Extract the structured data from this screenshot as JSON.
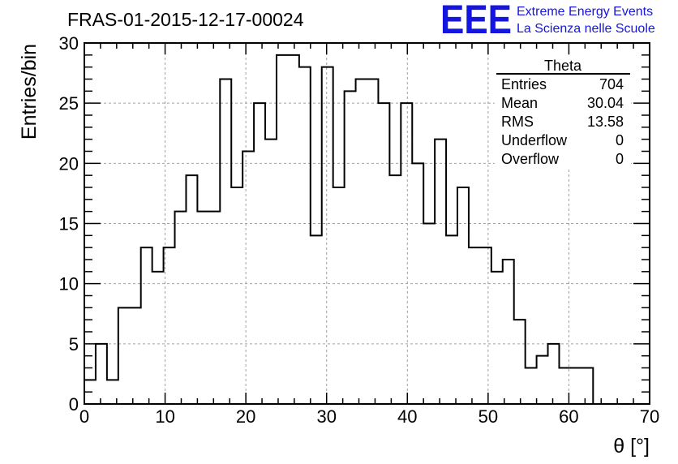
{
  "title": "FRAS-01-2015-12-17-00024",
  "logo": {
    "mark": "EEE",
    "line1": "Extreme Energy Events",
    "line2": "La Scienza nelle Scuole",
    "color": "#1515e0"
  },
  "stats": {
    "name": "Theta",
    "rows": [
      {
        "label": "Entries",
        "value": "704"
      },
      {
        "label": "Mean",
        "value": "30.04"
      },
      {
        "label": "RMS",
        "value": "13.58"
      },
      {
        "label": "Underflow",
        "value": "0"
      },
      {
        "label": "Overflow",
        "value": "0"
      }
    ]
  },
  "chart_data": {
    "type": "histogram",
    "xlabel": "θ [°]",
    "ylabel": "Entries/bin",
    "xlim": [
      0,
      70
    ],
    "ylim": [
      0,
      30
    ],
    "xticks": [
      0,
      10,
      20,
      30,
      40,
      50,
      60,
      70
    ],
    "yticks": [
      0,
      5,
      10,
      15,
      20,
      25,
      30
    ],
    "grid": true,
    "bin_width": 1.4,
    "bin_edges_start": 0,
    "counts": [
      2,
      5,
      2,
      8,
      8,
      13,
      11,
      13,
      16,
      19,
      16,
      16,
      27,
      18,
      21,
      25,
      22,
      29,
      29,
      28,
      14,
      28,
      18,
      26,
      27,
      27,
      25,
      19,
      25,
      20,
      15,
      22,
      14,
      18,
      13,
      13,
      11,
      12,
      7,
      3,
      4,
      5,
      3,
      3,
      3,
      0,
      0,
      0,
      0,
      0
    ],
    "line_color": "#000000"
  }
}
